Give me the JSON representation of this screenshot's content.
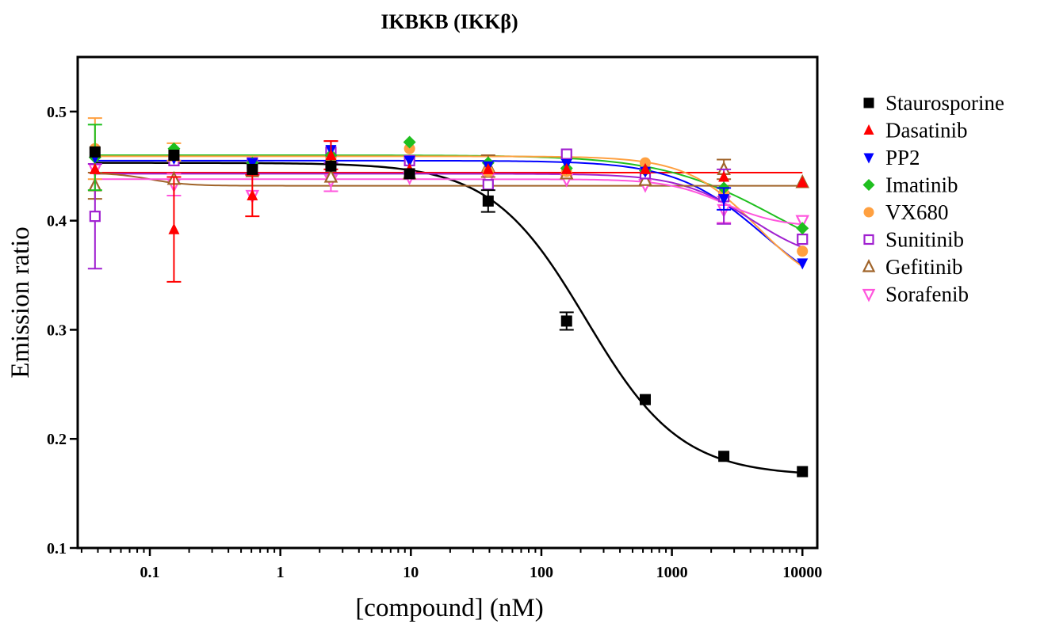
{
  "chart_data": {
    "type": "scatter",
    "title": "IKBKB (IKKβ)",
    "xlabel": "[compound] (nM)",
    "ylabel": "Emission ratio",
    "xscale": "log",
    "xlim": [
      0.028,
      13000
    ],
    "ylim": [
      0.1,
      0.55
    ],
    "x_tick_labels": [
      "0.1",
      "1",
      "10",
      "100",
      "1000",
      "10000"
    ],
    "x_tick_values": [
      0.1,
      1,
      10,
      100,
      1000,
      10000
    ],
    "y_tick_labels": [
      "0.1",
      "0.2",
      "0.3",
      "0.4",
      "0.5"
    ],
    "y_tick_values": [
      0.1,
      0.2,
      0.3,
      0.4,
      0.5
    ],
    "grid": false,
    "legend_position": "right",
    "x": [
      0.038,
      0.153,
      0.61,
      2.44,
      9.77,
      39.1,
      156,
      625,
      2500,
      10000
    ],
    "series": [
      {
        "name": "Staurosporine",
        "color": "#000000",
        "marker": "square-filled",
        "values": [
          0.463,
          0.46,
          0.447,
          0.45,
          0.443,
          0.418,
          0.308,
          0.236,
          0.184,
          0.17
        ],
        "errors": [
          0.005,
          0.005,
          0.004,
          0.004,
          0.004,
          0.01,
          0.008,
          0.004,
          0.003,
          0.002
        ],
        "fit": {
          "top": 0.453,
          "bottom": 0.166,
          "ic50": 220,
          "hill": 1.2
        }
      },
      {
        "name": "Dasatinib",
        "color": "#ff0000",
        "marker": "triangle-up-filled",
        "values": [
          0.447,
          0.392,
          0.423,
          0.46,
          0.447,
          0.447,
          0.447,
          0.447,
          0.44,
          0.435
        ],
        "errors": [
          0.006,
          0.048,
          0.019,
          0.013,
          0.006,
          0.006,
          0.006,
          0.006,
          0.006,
          0.004
        ],
        "fit": {
          "top": 0.444,
          "bottom": 0.444,
          "ic50": 1000,
          "hill": 1
        }
      },
      {
        "name": "PP2",
        "color": "#0000ff",
        "marker": "triangle-down-filled",
        "values": [
          0.458,
          0.457,
          0.453,
          0.465,
          0.455,
          0.45,
          0.452,
          0.445,
          0.42,
          0.361
        ],
        "errors": [
          0.006,
          0.006,
          0.006,
          0.006,
          0.006,
          0.006,
          0.006,
          0.006,
          0.01,
          0.004
        ],
        "fit": {
          "top": 0.455,
          "bottom": 0.32,
          "ic50": 5000,
          "hill": 1.3
        }
      },
      {
        "name": "Imatinib",
        "color": "#1fbf1f",
        "marker": "diamond-filled",
        "values": [
          0.458,
          0.466,
          0.453,
          0.46,
          0.472,
          0.453,
          0.448,
          0.446,
          0.43,
          0.393
        ],
        "errors": [
          0.03,
          0.005,
          0.005,
          0.005,
          0.004,
          0.005,
          0.005,
          0.005,
          0.006,
          0.004
        ],
        "fit": {
          "top": 0.46,
          "bottom": 0.35,
          "ic50": 6000,
          "hill": 1
        }
      },
      {
        "name": "VX680",
        "color": "#ffa040",
        "marker": "circle-filled",
        "values": [
          0.466,
          0.463,
          0.447,
          0.457,
          0.466,
          0.445,
          0.445,
          0.453,
          0.425,
          0.372
        ],
        "errors": [
          0.028,
          0.008,
          0.005,
          0.005,
          0.005,
          0.005,
          0.005,
          0.004,
          0.006,
          0.004
        ],
        "fit": {
          "top": 0.459,
          "bottom": 0.33,
          "ic50": 4500,
          "hill": 1.6
        }
      },
      {
        "name": "Sunitinib",
        "color": "#a020d0",
        "marker": "square-open",
        "values": [
          0.404,
          0.455,
          0.453,
          0.463,
          0.455,
          0.433,
          0.461,
          0.443,
          0.422,
          0.383
        ],
        "errors": [
          0.048,
          0.006,
          0.006,
          0.01,
          0.006,
          0.005,
          0.006,
          0.005,
          0.025,
          0.004
        ],
        "fit": {
          "top": 0.443,
          "bottom": 0.36,
          "ic50": 4000,
          "hill": 1.6
        }
      },
      {
        "name": "Gefitinib",
        "color": "#a0642a",
        "marker": "triangle-up-open",
        "values": [
          0.432,
          0.438,
          0.445,
          0.44,
          0.443,
          0.45,
          0.443,
          0.437,
          0.447,
          0.435
        ],
        "errors": [
          0.012,
          0.005,
          0.005,
          0.005,
          0.004,
          0.01,
          0.005,
          0.005,
          0.009,
          0.004
        ],
        "fit": {
          "top": 0.444,
          "bottom": 0.432,
          "ic50": 0.1,
          "hill": 3
        }
      },
      {
        "name": "Sorafenib",
        "color": "#ff55dd",
        "marker": "triangle-down-open",
        "values": [
          0.447,
          0.433,
          0.423,
          0.437,
          0.44,
          0.438,
          0.438,
          0.433,
          0.41,
          0.4
        ],
        "errors": [
          0.006,
          0.01,
          0.005,
          0.01,
          0.004,
          0.005,
          0.005,
          0.005,
          0.012,
          0.004
        ],
        "fit": {
          "top": 0.438,
          "bottom": 0.394,
          "ic50": 2500,
          "hill": 2
        }
      }
    ]
  }
}
